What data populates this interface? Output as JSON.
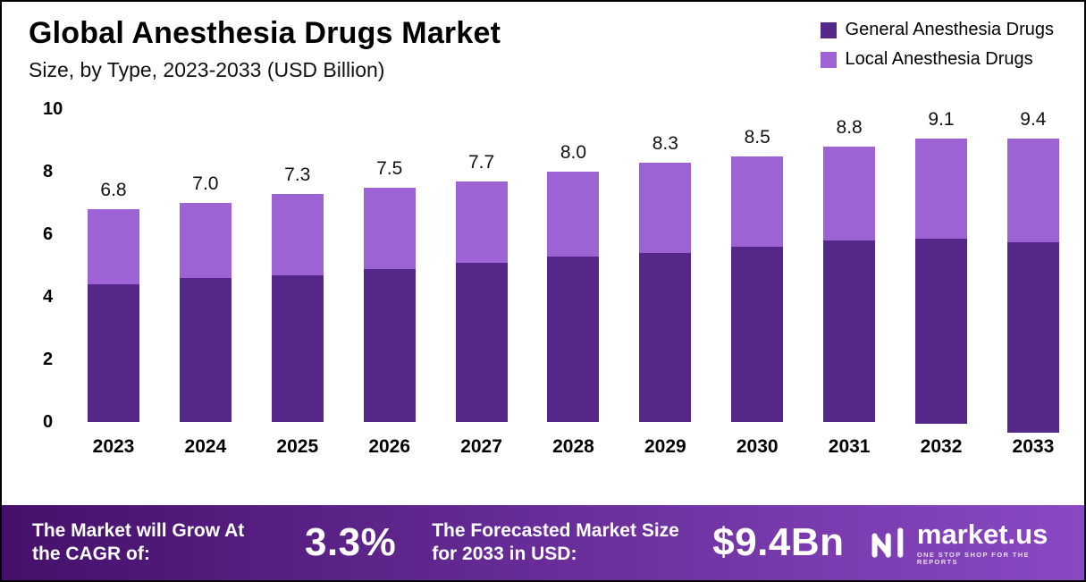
{
  "title": "Global Anesthesia Drugs Market",
  "subtitle": "Size, by Type, 2023-2033 (USD Billion)",
  "legend": [
    {
      "label": "General Anesthesia Drugs",
      "color": "#542788"
    },
    {
      "label": "Local Anesthesia Drugs",
      "color": "#9d63d4"
    }
  ],
  "chart_data": {
    "type": "bar",
    "stacked": true,
    "title": "Global Anesthesia Drugs Market Size, by Type, 2023-2033 (USD Billion)",
    "categories": [
      "2023",
      "2024",
      "2025",
      "2026",
      "2027",
      "2028",
      "2029",
      "2030",
      "2031",
      "2032",
      "2033"
    ],
    "series": [
      {
        "name": "General Anesthesia Drugs",
        "color": "#542788",
        "values": [
          4.4,
          4.6,
          4.7,
          4.9,
          5.1,
          5.3,
          5.4,
          5.6,
          5.8,
          5.9,
          6.1
        ]
      },
      {
        "name": "Local Anesthesia Drugs",
        "color": "#9d63d4",
        "values": [
          2.4,
          2.4,
          2.6,
          2.6,
          2.6,
          2.7,
          2.9,
          2.9,
          3.0,
          3.2,
          3.3
        ]
      }
    ],
    "totals": [
      6.8,
      7.0,
      7.3,
      7.5,
      7.7,
      8.0,
      8.3,
      8.5,
      8.8,
      9.1,
      9.4
    ],
    "xlabel": "",
    "ylabel": "",
    "ylim": [
      0,
      10
    ],
    "yticks": [
      0,
      2,
      4,
      6,
      8,
      10
    ],
    "grid": false,
    "legend_position": "top-right"
  },
  "footer": {
    "cagr_label": "The Market will Grow At the CAGR of:",
    "cagr_value": "3.3%",
    "forecast_label": "The Forecasted Market Size for 2033 in USD:",
    "forecast_value": "$9.4Bn",
    "brand_name": "market.us",
    "brand_tagline": "ONE STOP SHOP FOR THE REPORTS"
  }
}
